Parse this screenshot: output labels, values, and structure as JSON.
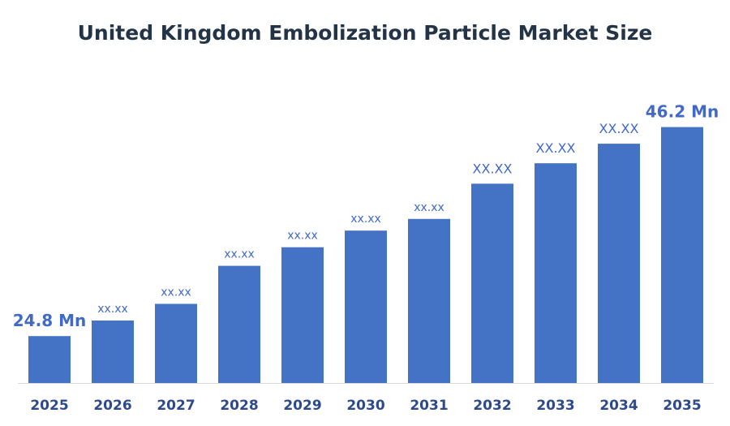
{
  "chart_data": {
    "type": "bar",
    "title": "United Kingdom Embolization Particle Market Size",
    "xlabel": "",
    "ylabel": "",
    "categories": [
      "2025",
      "2026",
      "2027",
      "2028",
      "2029",
      "2030",
      "2031",
      "2032",
      "2033",
      "2034",
      "2035"
    ],
    "values": [
      24.8,
      26.4,
      28.1,
      32.0,
      33.9,
      35.6,
      36.8,
      40.4,
      42.5,
      44.5,
      46.2
    ],
    "data_labels": [
      "24.8 Mn",
      "xx.xx",
      "xx.xx",
      "xx.xx",
      "xx.xx",
      "xx.xx",
      "xx.xx",
      "XX.XX",
      "XX.XX",
      "XX.XX",
      "46.2 Mn"
    ],
    "ylim": [
      20,
      47
    ],
    "grid": false,
    "legend": "none",
    "colors": {
      "bar": "#4472C4",
      "label": "#4169C8",
      "title": "#243447",
      "tick": "#2E4A8C",
      "axis": "#D9D9D9"
    }
  }
}
